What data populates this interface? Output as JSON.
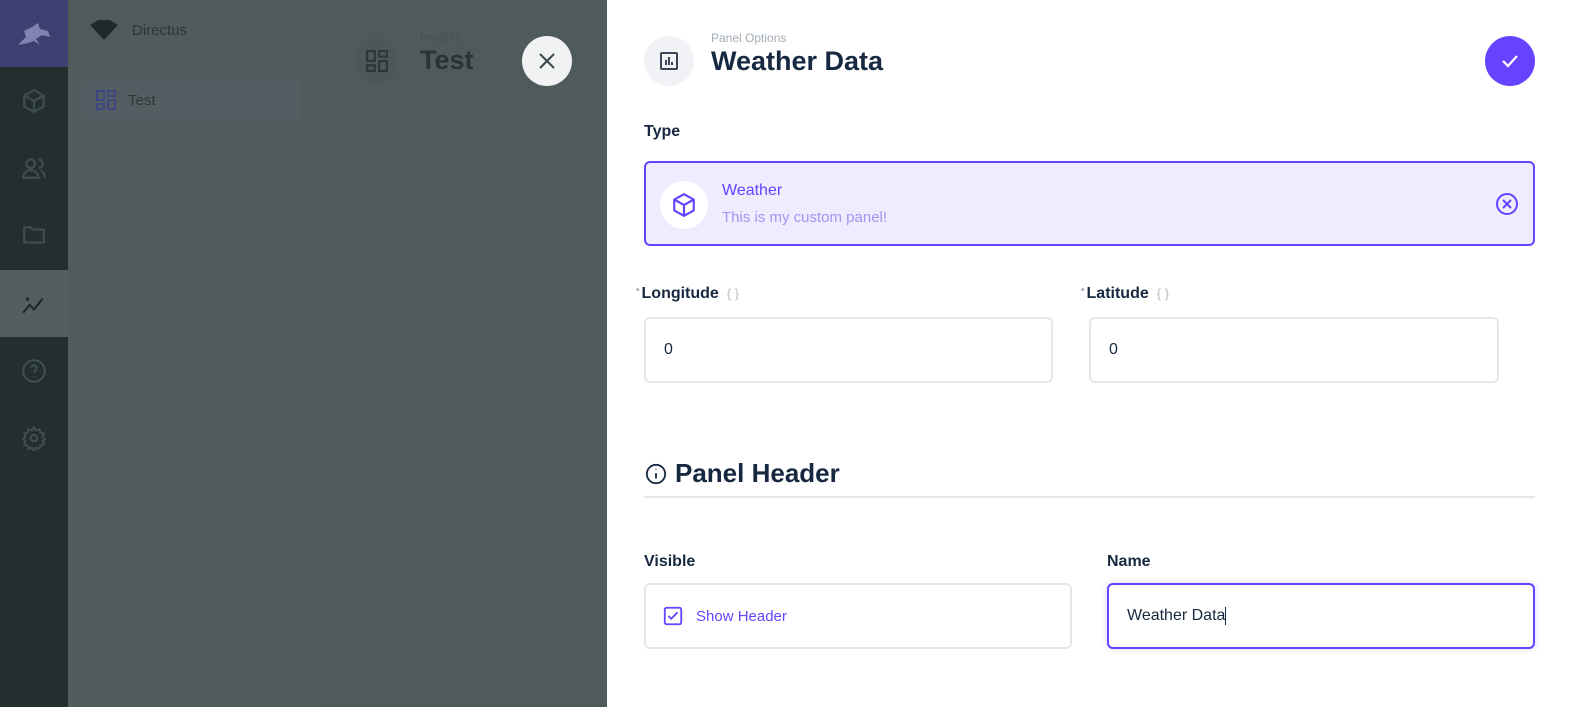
{
  "colors": {
    "accent": "#6644ff",
    "type_bg": "#f0ecff",
    "overlay": "#4f5a5a"
  },
  "nav": {
    "project": "Directus",
    "items": [
      {
        "label": "Test",
        "icon": "dashboard-icon"
      }
    ],
    "rail": [
      "cube-icon",
      "users-icon",
      "folder-icon",
      "insights-icon",
      "help-icon",
      "settings-icon"
    ]
  },
  "header": {
    "breadcrumb": "Insights",
    "title": "Test"
  },
  "drawer": {
    "breadcrumb": "Panel Options",
    "title": "Weather Data",
    "type": {
      "label": "Type",
      "name": "Weather",
      "description": "This is my custom panel!"
    },
    "longitude": {
      "label": "Longitude",
      "value": "0"
    },
    "latitude": {
      "label": "Latitude",
      "value": "0"
    },
    "panel_header": {
      "title": "Panel Header"
    },
    "visible": {
      "label": "Visible",
      "checkbox_label": "Show Header",
      "checked": true
    },
    "name": {
      "label": "Name",
      "value": "Weather Data"
    }
  }
}
